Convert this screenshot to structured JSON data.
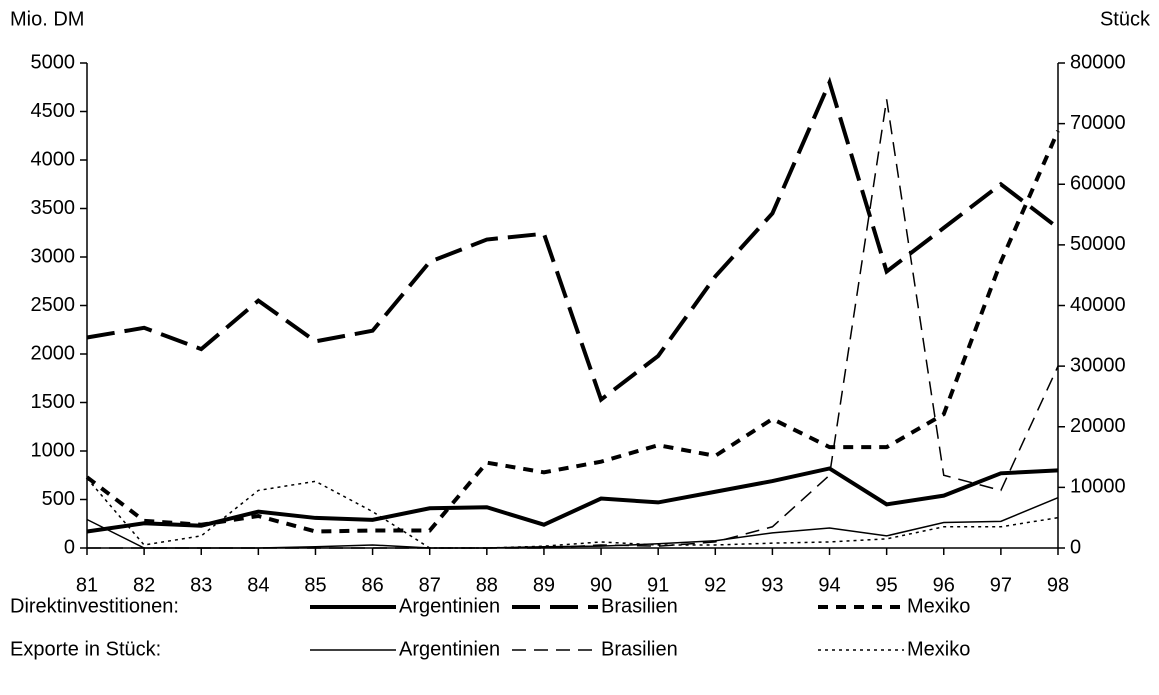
{
  "chart_data": {
    "type": "line",
    "ylabel": "Mio. DM",
    "y2label": "Stück",
    "categories": [
      "81",
      "82",
      "83",
      "84",
      "85",
      "86",
      "87",
      "88",
      "89",
      "90",
      "91",
      "92",
      "93",
      "94",
      "95",
      "96",
      "97",
      "98"
    ],
    "ylim": [
      0,
      5000
    ],
    "yticks": [
      0,
      500,
      1000,
      1500,
      2000,
      2500,
      3000,
      3500,
      4000,
      4500,
      5000
    ],
    "y2lim": [
      0,
      80000
    ],
    "y2ticks": [
      0,
      10000,
      20000,
      30000,
      40000,
      50000,
      60000,
      70000,
      80000
    ],
    "legend_groups": [
      "Direktinvestitionen:",
      "Exporte in Stück:"
    ],
    "series": [
      {
        "name": "Argentinien",
        "color": "#000000",
        "width": "thick",
        "dash": "solid",
        "axis": "y",
        "values": [
          170,
          255,
          230,
          375,
          310,
          290,
          410,
          420,
          240,
          510,
          470,
          580,
          690,
          820,
          450,
          540,
          770,
          800
        ]
      },
      {
        "name": "Brasilien",
        "color": "#000000",
        "width": "thick",
        "dash": "dashed",
        "axis": "y",
        "values": [
          2170,
          2270,
          2050,
          2550,
          2130,
          2240,
          2950,
          3180,
          3240,
          1530,
          1980,
          2800,
          3450,
          4800,
          2850,
          3300,
          3750,
          3300
        ]
      },
      {
        "name": "Mexiko",
        "color": "#000000",
        "width": "thick",
        "dash": "dotted",
        "axis": "y",
        "values": [
          730,
          280,
          240,
          330,
          170,
          180,
          180,
          880,
          780,
          890,
          1060,
          950,
          1330,
          1040,
          1040,
          1380,
          2950,
          4300
        ]
      },
      {
        "name": "Argentinien",
        "color": "#000000",
        "width": "thin",
        "dash": "solid",
        "axis": "y2",
        "values": [
          4700,
          0,
          0,
          0,
          200,
          500,
          0,
          0,
          200,
          300,
          700,
          1200,
          2500,
          3300,
          2000,
          4200,
          4400,
          8300
        ]
      },
      {
        "name": "Brasilien",
        "color": "#000000",
        "width": "thin",
        "dash": "dashed",
        "axis": "y2",
        "values": [
          0,
          0,
          0,
          0,
          0,
          0,
          0,
          0,
          0,
          500,
          300,
          1000,
          3500,
          12000,
          74000,
          12000,
          9500,
          30000
        ]
      },
      {
        "name": "Mexiko",
        "color": "#000000",
        "width": "thin",
        "dash": "dotted",
        "axis": "y2",
        "values": [
          11500,
          500,
          2000,
          9500,
          11000,
          6000,
          0,
          0,
          300,
          1000,
          500,
          500,
          800,
          1000,
          1500,
          3500,
          3500,
          5000
        ]
      }
    ]
  }
}
